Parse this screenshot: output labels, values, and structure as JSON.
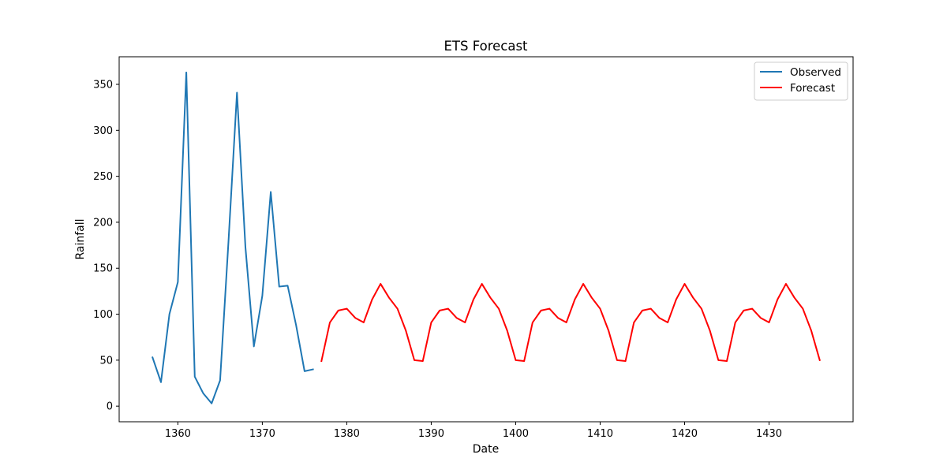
{
  "chart_data": {
    "type": "line",
    "title": "ETS Forecast",
    "xlabel": "Date",
    "ylabel": "Rainfall",
    "xlim": [
      1353.05,
      1439.95
    ],
    "ylim": [
      -17.0,
      380.0
    ],
    "xticks": [
      1360,
      1370,
      1380,
      1390,
      1400,
      1410,
      1420,
      1430
    ],
    "yticks": [
      0,
      50,
      100,
      150,
      200,
      250,
      300,
      350
    ],
    "grid": false,
    "legend_position": "top-right",
    "series": [
      {
        "name": "Observed",
        "color": "#1f77b4",
        "x": [
          1357,
          1358,
          1359,
          1360,
          1361,
          1362,
          1363,
          1364,
          1365,
          1366,
          1367,
          1368,
          1369,
          1370,
          1371,
          1372,
          1373,
          1374,
          1375,
          1376
        ],
        "y": [
          53,
          26,
          100,
          135,
          363,
          32,
          14,
          3,
          28,
          180,
          341,
          173,
          65,
          120,
          233,
          130,
          131,
          88,
          38,
          40
        ]
      },
      {
        "name": "Forecast",
        "color": "#ff0000",
        "x": [
          1377,
          1378,
          1379,
          1380,
          1381,
          1382,
          1383,
          1384,
          1385,
          1386,
          1387,
          1388,
          1389,
          1390,
          1391,
          1392,
          1393,
          1394,
          1395,
          1396,
          1397,
          1398,
          1399,
          1400,
          1401,
          1402,
          1403,
          1404,
          1405,
          1406,
          1407,
          1408,
          1409,
          1410,
          1411,
          1412,
          1413,
          1414,
          1415,
          1416,
          1417,
          1418,
          1419,
          1420,
          1421,
          1422,
          1423,
          1424,
          1425,
          1426,
          1427,
          1428,
          1429,
          1430,
          1431,
          1432,
          1433,
          1434,
          1435,
          1436
        ],
        "y": [
          49,
          91,
          104,
          106,
          96,
          91,
          116,
          133,
          118,
          106,
          82,
          50,
          49,
          91,
          104,
          106,
          96,
          91,
          116,
          133,
          118,
          106,
          82,
          50,
          49,
          91,
          104,
          106,
          96,
          91,
          116,
          133,
          118,
          106,
          82,
          50,
          49,
          91,
          104,
          106,
          96,
          91,
          116,
          133,
          118,
          106,
          82,
          50,
          49,
          91,
          104,
          106,
          96,
          91,
          116,
          133,
          118,
          106,
          82,
          50
        ]
      }
    ]
  }
}
